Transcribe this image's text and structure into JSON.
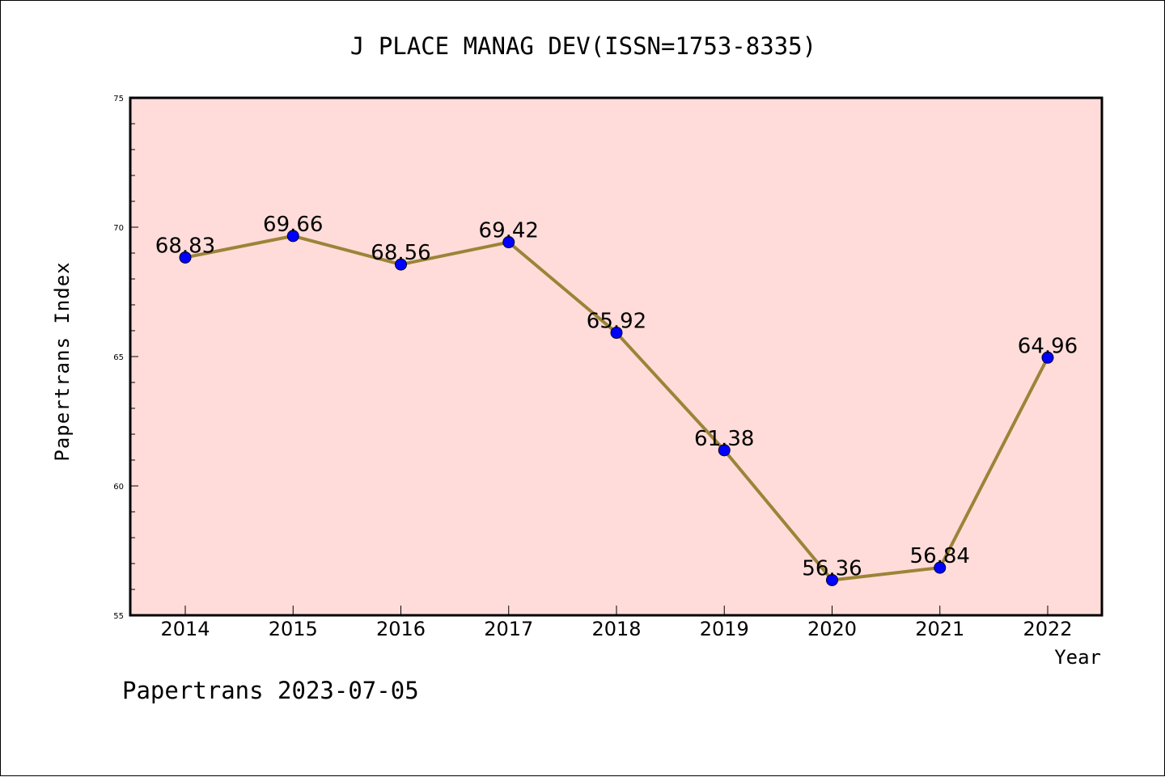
{
  "chart_data": {
    "type": "line",
    "title": "J PLACE MANAG DEV(ISSN=1753-8335)",
    "xlabel": "Year",
    "ylabel": "Papertrans Index",
    "categories": [
      "2014",
      "2015",
      "2016",
      "2017",
      "2018",
      "2019",
      "2020",
      "2021",
      "2022"
    ],
    "values": [
      68.83,
      69.66,
      68.56,
      69.42,
      65.92,
      61.38,
      56.36,
      56.84,
      64.96
    ],
    "data_labels": [
      "68.83",
      "69.66",
      "68.56",
      "69.42",
      "65.92",
      "61.38",
      "56.36",
      "56.84",
      "64.96"
    ],
    "ylim": [
      55,
      75
    ],
    "yticks": [
      "55",
      "60",
      "65",
      "70",
      "75"
    ],
    "grid": false,
    "legend": "none",
    "colors": {
      "plot_background": "#ffdcd9",
      "line": "#9b8438",
      "marker": "#0000ff"
    }
  },
  "footer": "Papertrans 2023-07-05"
}
